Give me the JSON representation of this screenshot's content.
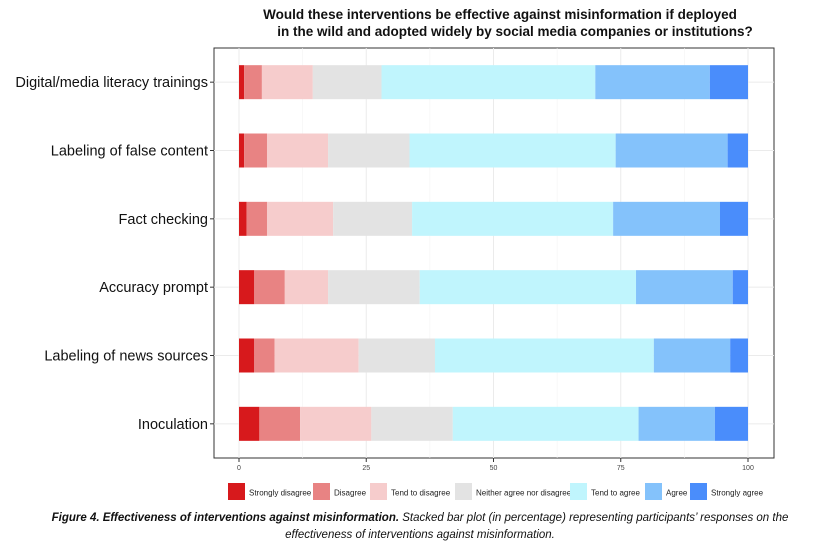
{
  "chart_data": {
    "type": "bar",
    "orientation": "horizontal",
    "stacked": true,
    "title_lines": [
      "Would these interventions be effective against misinformation if deployed",
      "in the wild and adopted widely by social media companies or institutions?"
    ],
    "categories": [
      "Digital/media literacy trainings",
      "Labeling of false content",
      "Fact checking",
      "Accuracy prompt",
      "Labeling of news sources",
      "Inoculation"
    ],
    "series": [
      {
        "name": "Strongly disagree",
        "color": "#d7191c",
        "values": [
          1,
          1,
          1.5,
          3,
          3,
          4
        ]
      },
      {
        "name": "Disagree",
        "color": "#e88383",
        "values": [
          3.5,
          4.5,
          4,
          6,
          4,
          8
        ]
      },
      {
        "name": "Tend to disagree",
        "color": "#f6cccc",
        "values": [
          10,
          12,
          13,
          8.5,
          16.5,
          14
        ]
      },
      {
        "name": "Neither agree nor disagree",
        "color": "#e3e3e3",
        "values": [
          13.5,
          16,
          15.5,
          18,
          15,
          16
        ]
      },
      {
        "name": "Tend to agree",
        "color": "#c0f5fd",
        "values": [
          42,
          40.5,
          39.5,
          42.5,
          43,
          36.5
        ]
      },
      {
        "name": "Agree",
        "color": "#84c2fb",
        "values": [
          22.5,
          22,
          21,
          19,
          15,
          15
        ]
      },
      {
        "name": "Strongly agree",
        "color": "#4a8dfb",
        "values": [
          7.5,
          4,
          5.5,
          3,
          3.5,
          6.5
        ]
      }
    ],
    "xlim": [
      0,
      100
    ],
    "xticks": [
      0,
      25,
      50,
      75,
      100
    ],
    "grid": true,
    "legend_position": "bottom"
  },
  "caption": {
    "bold": "Figure 4. Effectiveness of interventions against misinformation.",
    "text": " Stacked bar plot (in percentage) representing participants’ responses on the effectiveness of interventions against misinformation."
  }
}
